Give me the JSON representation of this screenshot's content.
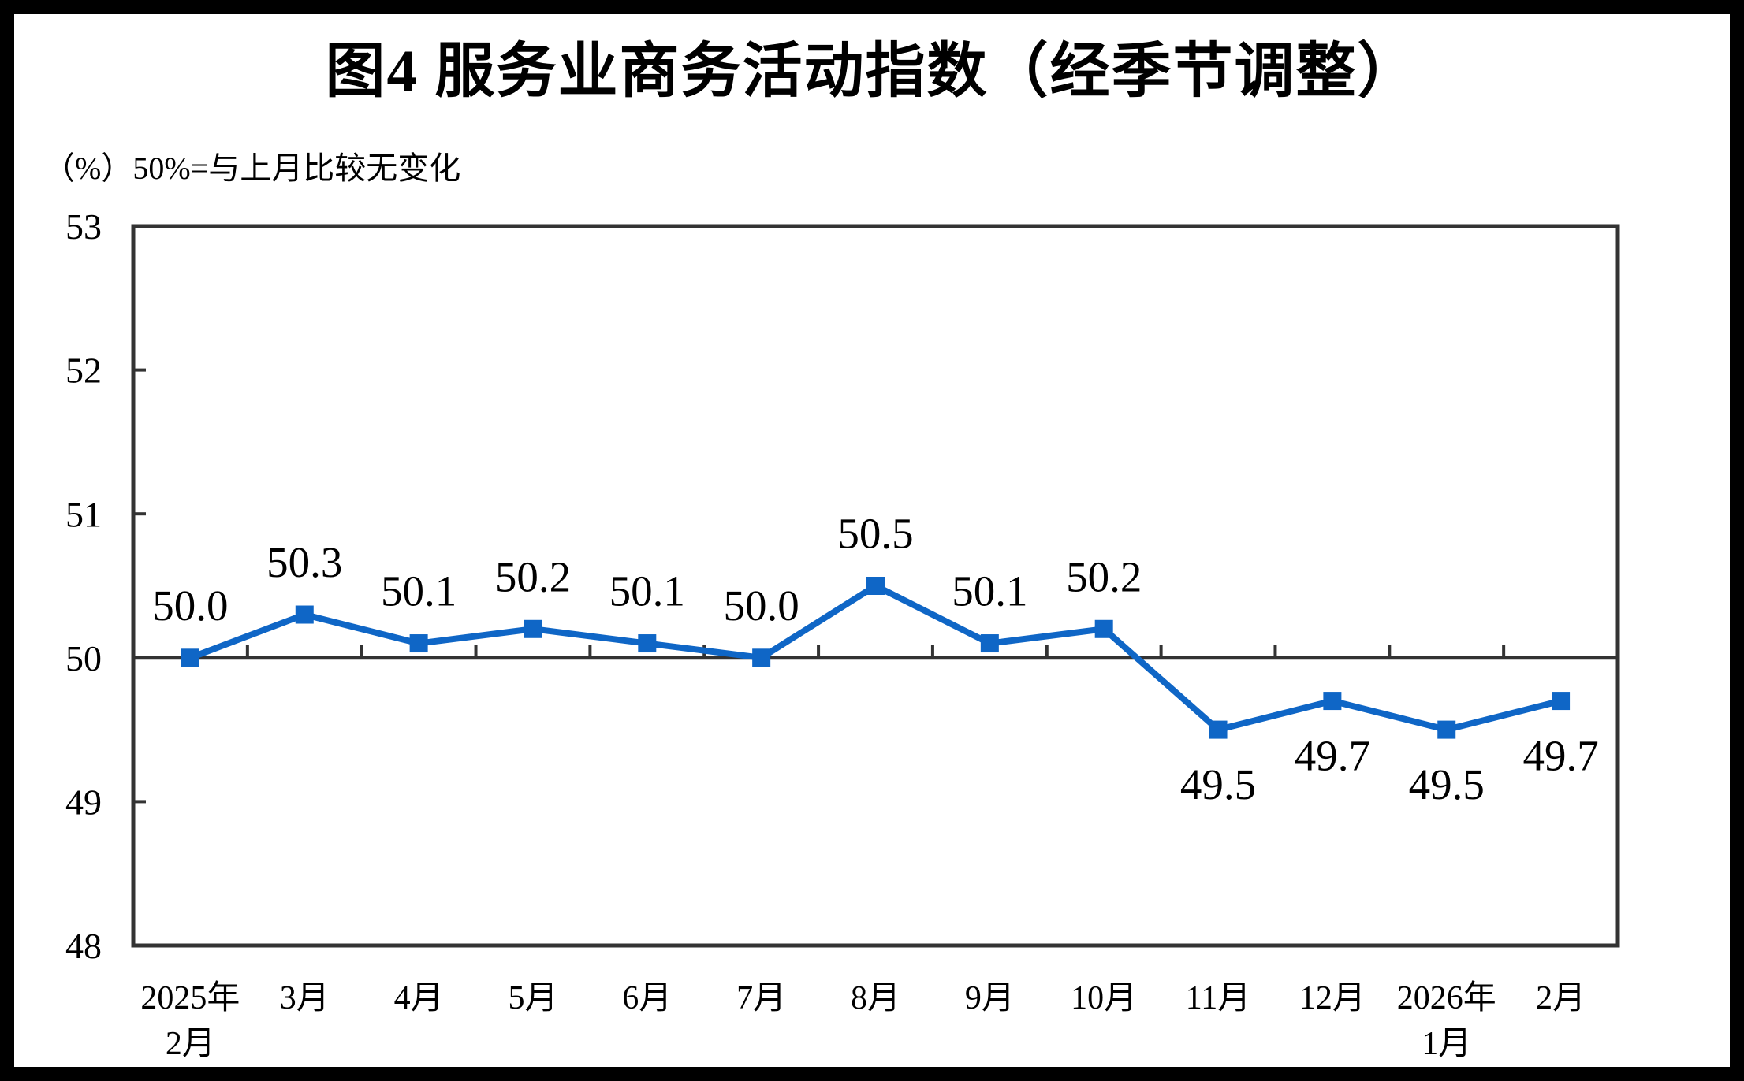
{
  "chart_data": {
    "type": "line",
    "title": "图4  服务业商务活动指数（经季节调整）",
    "unit_note": "（%）50%=与上月比较无变化",
    "categories": [
      "2025年2月",
      "3月",
      "4月",
      "5月",
      "6月",
      "7月",
      "8月",
      "9月",
      "10月",
      "11月",
      "12月",
      "2026年1月",
      "2月"
    ],
    "category_label_lines": [
      [
        "2025年",
        "2月"
      ],
      [
        "3月"
      ],
      [
        "4月"
      ],
      [
        "5月"
      ],
      [
        "6月"
      ],
      [
        "7月"
      ],
      [
        "8月"
      ],
      [
        "9月"
      ],
      [
        "10月"
      ],
      [
        "11月"
      ],
      [
        "12月"
      ],
      [
        "2026年",
        "1月"
      ],
      [
        "2月"
      ]
    ],
    "values": [
      50.0,
      50.3,
      50.1,
      50.2,
      50.1,
      50.0,
      50.5,
      50.1,
      50.2,
      49.5,
      49.7,
      49.5,
      49.7
    ],
    "data_labels": [
      "50.0",
      "50.3",
      "50.1",
      "50.2",
      "50.1",
      "50.0",
      "50.5",
      "50.1",
      "50.2",
      "49.5",
      "49.7",
      "49.5",
      "49.7"
    ],
    "ylim": [
      48,
      53
    ],
    "yticks": [
      "53",
      "52",
      "51",
      "50",
      "49",
      "48"
    ],
    "ytick_values": [
      53,
      52,
      51,
      50,
      49,
      48
    ],
    "x_axis_crosses_at": 50,
    "grid": false,
    "legend": null,
    "marker": "square",
    "colors": {
      "line": "#0F66C6",
      "axis": "#333333",
      "text": "#000000",
      "frame": "#000000",
      "background": "#FFFFFF"
    }
  }
}
